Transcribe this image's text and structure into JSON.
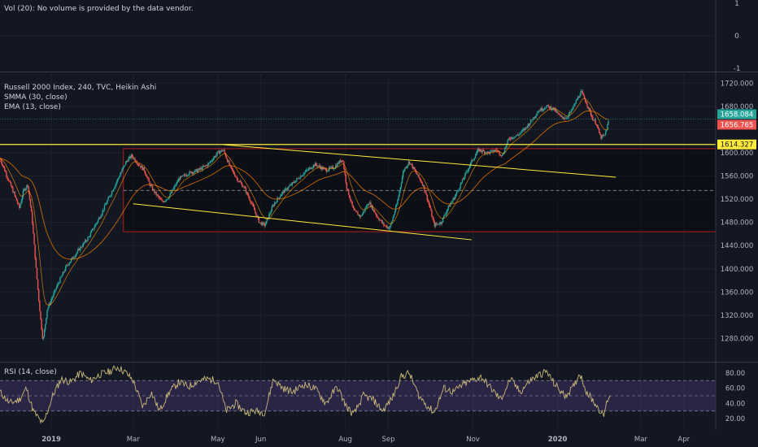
{
  "volume_pane": {
    "legend": "Vol (20): No volume is provided by the data vendor.",
    "ticks": [
      "1",
      "0",
      "-1"
    ]
  },
  "main_pane": {
    "legend": [
      "Russell 2000 Index, 240, TVC, Heikin Ashi",
      "SMMA (30, close)",
      "EMA (13, close)"
    ],
    "price_labels": {
      "upper": {
        "text": "1658.084",
        "value": 1658.084,
        "color": "#26a69a"
      },
      "lower": {
        "text": "1656.765",
        "value": 1656.765,
        "color": "#ef5350"
      },
      "line": {
        "text": "1614.327",
        "value": 1614.327,
        "color": "#ffeb3b"
      }
    }
  },
  "rsi_pane": {
    "legend": "RSI (14, close)",
    "ticks": [
      "80.00",
      "60.00",
      "40.00",
      "20.00"
    ]
  },
  "colors": {
    "up": "#26a69a",
    "down": "#ef5350",
    "trendline": "#ffeb3b",
    "range_box": "#b71c1c",
    "rsi_line": "#c9b87a",
    "rsi_band": "#7e57c2",
    "smma": "#f57c00",
    "ema": "#ff9800"
  },
  "chart_data": [
    {
      "type": "line",
      "title": "Vol (20): No volume is provided by the data vendor.",
      "ylim": [
        -1,
        1
      ],
      "yticks": [
        1,
        0,
        -1
      ],
      "x": [],
      "series": []
    },
    {
      "type": "candlestick",
      "title": "Russell 2000 Index, 240, TVC, Heikin Ashi",
      "ylim": [
        1240,
        1740
      ],
      "yticks": [
        1720,
        1680,
        1640,
        1600,
        1560,
        1520,
        1480,
        1440,
        1400,
        1360,
        1320,
        1280
      ],
      "ytick_labels": [
        "1720.000",
        "1680.000",
        "",
        "1600.000",
        "1560.000",
        "1520.000",
        "1480.000",
        "1440.000",
        "1400.000",
        "1360.000",
        "1320.000",
        "1280.000"
      ],
      "xlim": [
        "2018-11-25",
        "2020-04-24"
      ],
      "xticks": [
        {
          "label": "2019",
          "date": "2019-01-01"
        },
        {
          "label": "Mar",
          "date": "2019-03-01"
        },
        {
          "label": "May",
          "date": "2019-05-01"
        },
        {
          "label": "Jun",
          "date": "2019-06-01"
        },
        {
          "label": "Aug",
          "date": "2019-08-01"
        },
        {
          "label": "Sep",
          "date": "2019-09-01"
        },
        {
          "label": "Nov",
          "date": "2019-11-01"
        },
        {
          "label": "2020",
          "date": "2020-01-01"
        },
        {
          "label": "Mar",
          "date": "2020-03-01"
        },
        {
          "label": "Apr",
          "date": "2020-04-01"
        }
      ],
      "price_path": [
        [
          "2018-11-25",
          1590
        ],
        [
          "2018-11-30",
          1560
        ],
        [
          "2018-12-05",
          1530
        ],
        [
          "2018-12-09",
          1505
        ],
        [
          "2018-12-12",
          1535
        ],
        [
          "2018-12-15",
          1545
        ],
        [
          "2018-12-18",
          1490
        ],
        [
          "2018-12-21",
          1400
        ],
        [
          "2018-12-24",
          1320
        ],
        [
          "2018-12-26",
          1275
        ],
        [
          "2018-12-29",
          1330
        ],
        [
          "2019-01-05",
          1370
        ],
        [
          "2019-01-12",
          1405
        ],
        [
          "2019-01-20",
          1430
        ],
        [
          "2019-01-28",
          1455
        ],
        [
          "2019-02-05",
          1490
        ],
        [
          "2019-02-12",
          1525
        ],
        [
          "2019-02-18",
          1555
        ],
        [
          "2019-02-24",
          1585
        ],
        [
          "2019-02-28",
          1595
        ],
        [
          "2019-03-05",
          1580
        ],
        [
          "2019-03-09",
          1570
        ],
        [
          "2019-03-13",
          1545
        ],
        [
          "2019-03-17",
          1530
        ],
        [
          "2019-03-22",
          1515
        ],
        [
          "2019-03-27",
          1525
        ],
        [
          "2019-04-03",
          1555
        ],
        [
          "2019-04-10",
          1565
        ],
        [
          "2019-04-17",
          1570
        ],
        [
          "2019-04-24",
          1580
        ],
        [
          "2019-05-01",
          1600
        ],
        [
          "2019-05-05",
          1605
        ],
        [
          "2019-05-10",
          1575
        ],
        [
          "2019-05-15",
          1555
        ],
        [
          "2019-05-20",
          1540
        ],
        [
          "2019-05-25",
          1515
        ],
        [
          "2019-05-31",
          1480
        ],
        [
          "2019-06-04",
          1475
        ],
        [
          "2019-06-10",
          1510
        ],
        [
          "2019-06-16",
          1530
        ],
        [
          "2019-06-23",
          1545
        ],
        [
          "2019-07-02",
          1565
        ],
        [
          "2019-07-10",
          1580
        ],
        [
          "2019-07-18",
          1570
        ],
        [
          "2019-07-24",
          1575
        ],
        [
          "2019-07-30",
          1590
        ],
        [
          "2019-08-02",
          1540
        ],
        [
          "2019-08-07",
          1500
        ],
        [
          "2019-08-12",
          1490
        ],
        [
          "2019-08-18",
          1515
        ],
        [
          "2019-08-24",
          1490
        ],
        [
          "2019-08-29",
          1475
        ],
        [
          "2019-09-02",
          1470
        ],
        [
          "2019-09-07",
          1510
        ],
        [
          "2019-09-12",
          1570
        ],
        [
          "2019-09-16",
          1585
        ],
        [
          "2019-09-21",
          1565
        ],
        [
          "2019-09-26",
          1545
        ],
        [
          "2019-10-01",
          1505
        ],
        [
          "2019-10-04",
          1475
        ],
        [
          "2019-10-09",
          1480
        ],
        [
          "2019-10-14",
          1505
        ],
        [
          "2019-10-19",
          1525
        ],
        [
          "2019-10-25",
          1555
        ],
        [
          "2019-10-31",
          1585
        ],
        [
          "2019-11-05",
          1605
        ],
        [
          "2019-11-12",
          1600
        ],
        [
          "2019-11-18",
          1605
        ],
        [
          "2019-11-22",
          1595
        ],
        [
          "2019-11-27",
          1625
        ],
        [
          "2019-12-03",
          1630
        ],
        [
          "2019-12-08",
          1640
        ],
        [
          "2019-12-13",
          1655
        ],
        [
          "2019-12-18",
          1672
        ],
        [
          "2019-12-24",
          1680
        ],
        [
          "2019-12-29",
          1676
        ],
        [
          "2020-01-03",
          1662
        ],
        [
          "2020-01-07",
          1660
        ],
        [
          "2020-01-11",
          1672
        ],
        [
          "2020-01-15",
          1692
        ],
        [
          "2020-01-18",
          1705
        ],
        [
          "2020-01-22",
          1685
        ],
        [
          "2020-01-26",
          1660
        ],
        [
          "2020-01-29",
          1650
        ],
        [
          "2020-02-01",
          1626
        ],
        [
          "2020-02-04",
          1630
        ],
        [
          "2020-02-07",
          1656
        ]
      ],
      "annotations": {
        "horizontal_line": 1614.327,
        "range_box": {
          "from": "2019-02-22",
          "to": "2020-04-24",
          "top": 1607,
          "bottom": 1464
        },
        "dashed_midline": 1535,
        "channel_upper": [
          [
            "2019-05-05",
            1614
          ],
          [
            "2020-02-12",
            1558
          ]
        ],
        "channel_lower": [
          [
            "2019-03-01",
            1512
          ],
          [
            "2019-10-31",
            1450
          ]
        ],
        "dotted_price_line": 1658
      }
    },
    {
      "type": "line",
      "title": "RSI (14, close)",
      "ylim": [
        5,
        95
      ],
      "yticks": [
        80,
        60,
        40,
        20
      ],
      "band": [
        30,
        70
      ],
      "series": [
        {
          "name": "RSI (14, close)",
          "points": [
            [
              "2018-11-25",
              55
            ],
            [
              "2018-12-02",
              40
            ],
            [
              "2018-12-09",
              45
            ],
            [
              "2018-12-14",
              60
            ],
            [
              "2018-12-19",
              30
            ],
            [
              "2018-12-26",
              12
            ],
            [
              "2019-01-02",
              50
            ],
            [
              "2019-01-08",
              72
            ],
            [
              "2019-01-15",
              68
            ],
            [
              "2019-01-22",
              80
            ],
            [
              "2019-01-29",
              70
            ],
            [
              "2019-02-05",
              78
            ],
            [
              "2019-02-12",
              82
            ],
            [
              "2019-02-18",
              88
            ],
            [
              "2019-02-24",
              80
            ],
            [
              "2019-03-01",
              70
            ],
            [
              "2019-03-08",
              35
            ],
            [
              "2019-03-14",
              55
            ],
            [
              "2019-03-20",
              30
            ],
            [
              "2019-03-27",
              55
            ],
            [
              "2019-04-03",
              68
            ],
            [
              "2019-04-10",
              62
            ],
            [
              "2019-04-17",
              70
            ],
            [
              "2019-04-24",
              72
            ],
            [
              "2019-05-01",
              70
            ],
            [
              "2019-05-07",
              30
            ],
            [
              "2019-05-14",
              40
            ],
            [
              "2019-05-21",
              28
            ],
            [
              "2019-05-28",
              30
            ],
            [
              "2019-06-04",
              28
            ],
            [
              "2019-06-10",
              72
            ],
            [
              "2019-06-17",
              60
            ],
            [
              "2019-06-24",
              55
            ],
            [
              "2019-07-02",
              65
            ],
            [
              "2019-07-10",
              60
            ],
            [
              "2019-07-18",
              40
            ],
            [
              "2019-07-26",
              62
            ],
            [
              "2019-08-02",
              35
            ],
            [
              "2019-08-07",
              25
            ],
            [
              "2019-08-14",
              50
            ],
            [
              "2019-08-21",
              45
            ],
            [
              "2019-08-28",
              30
            ],
            [
              "2019-09-04",
              48
            ],
            [
              "2019-09-10",
              75
            ],
            [
              "2019-09-16",
              80
            ],
            [
              "2019-09-23",
              50
            ],
            [
              "2019-09-30",
              35
            ],
            [
              "2019-10-04",
              28
            ],
            [
              "2019-10-11",
              60
            ],
            [
              "2019-10-18",
              55
            ],
            [
              "2019-10-25",
              65
            ],
            [
              "2019-10-31",
              70
            ],
            [
              "2019-11-07",
              75
            ],
            [
              "2019-11-14",
              60
            ],
            [
              "2019-11-21",
              45
            ],
            [
              "2019-11-28",
              72
            ],
            [
              "2019-12-05",
              55
            ],
            [
              "2019-12-12",
              70
            ],
            [
              "2019-12-19",
              78
            ],
            [
              "2019-12-24",
              82
            ],
            [
              "2019-12-30",
              65
            ],
            [
              "2020-01-06",
              50
            ],
            [
              "2020-01-12",
              60
            ],
            [
              "2020-01-17",
              80
            ],
            [
              "2020-01-22",
              55
            ],
            [
              "2020-01-28",
              40
            ],
            [
              "2020-02-01",
              30
            ],
            [
              "2020-02-03",
              22
            ],
            [
              "2020-02-06",
              45
            ],
            [
              "2020-02-08",
              52
            ]
          ]
        }
      ]
    }
  ]
}
